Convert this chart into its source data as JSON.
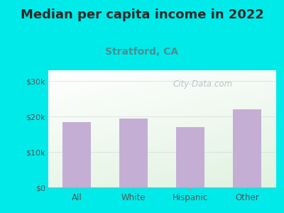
{
  "categories": [
    "All",
    "White",
    "Hispanic",
    "Other"
  ],
  "values": [
    18500,
    19500,
    17000,
    22000
  ],
  "bar_color": "#c4aed4",
  "title": "Median per capita income in 2022",
  "subtitle": "Stratford, CA",
  "title_fontsize": 13,
  "subtitle_fontsize": 10,
  "subtitle_color": "#4a9090",
  "title_color": "#2a2a2a",
  "background_color": "#00eaea",
  "ylabel_ticks": [
    "$0",
    "$10k",
    "$20k",
    "$30k"
  ],
  "ytick_values": [
    0,
    10000,
    20000,
    30000
  ],
  "ylim": [
    0,
    33000
  ],
  "tick_color": "#555555",
  "watermark": "City-Data.com",
  "watermark_color": "#b0c0c0"
}
